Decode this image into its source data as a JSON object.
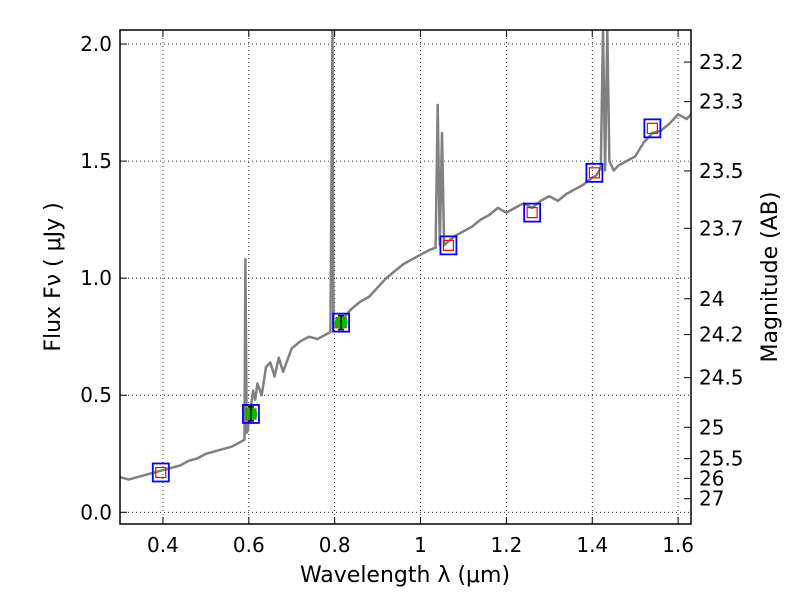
{
  "chart_data": {
    "type": "line",
    "xlabel": "Wavelength  λ (μm)",
    "ylabel": "Flux  Fν  ( μJy )",
    "y2label": "Magnitude (AB)",
    "xlim": [
      0.3,
      1.63
    ],
    "ylim": [
      -0.05,
      2.06
    ],
    "grid": true,
    "x_ticks": [
      {
        "value": 0.4,
        "label": "0.4"
      },
      {
        "value": 0.6,
        "label": "0.6"
      },
      {
        "value": 0.8,
        "label": "0.8"
      },
      {
        "value": 1.0,
        "label": "1"
      },
      {
        "value": 1.2,
        "label": "1.2"
      },
      {
        "value": 1.4,
        "label": "1.4"
      },
      {
        "value": 1.6,
        "label": "1.6"
      }
    ],
    "y_ticks": [
      {
        "value": 0.0,
        "label": "0.0"
      },
      {
        "value": 0.5,
        "label": "0.5"
      },
      {
        "value": 1.0,
        "label": "1.0"
      },
      {
        "value": 1.5,
        "label": "1.5"
      },
      {
        "value": 2.0,
        "label": "2.0"
      }
    ],
    "magnitude_ticks": [
      {
        "flux": 1.923,
        "label": "23.2"
      },
      {
        "flux": 1.754,
        "label": "23.3"
      },
      {
        "flux": 1.458,
        "label": "23.5"
      },
      {
        "flux": 1.213,
        "label": "23.7"
      },
      {
        "flux": 0.912,
        "label": "24"
      },
      {
        "flux": 0.759,
        "label": "24.2"
      },
      {
        "flux": 0.575,
        "label": "24.5"
      },
      {
        "flux": 0.363,
        "label": "25"
      },
      {
        "flux": 0.229,
        "label": "25.5"
      },
      {
        "flux": 0.145,
        "label": "26"
      },
      {
        "flux": 0.058,
        "label": "27"
      }
    ],
    "spectrum": {
      "name": "",
      "color": "#808080",
      "x": [
        0.3,
        0.32,
        0.34,
        0.36,
        0.38,
        0.4,
        0.42,
        0.44,
        0.46,
        0.48,
        0.5,
        0.52,
        0.54,
        0.56,
        0.58,
        0.59,
        0.592,
        0.595,
        0.598,
        0.6,
        0.605,
        0.61,
        0.615,
        0.62,
        0.63,
        0.64,
        0.65,
        0.66,
        0.67,
        0.68,
        0.69,
        0.7,
        0.72,
        0.74,
        0.76,
        0.78,
        0.79,
        0.795,
        0.797,
        0.8,
        0.805,
        0.81,
        0.82,
        0.84,
        0.86,
        0.88,
        0.9,
        0.92,
        0.94,
        0.96,
        0.98,
        1.0,
        1.02,
        1.035,
        1.04,
        1.045,
        1.05,
        1.055,
        1.06,
        1.08,
        1.1,
        1.12,
        1.14,
        1.16,
        1.18,
        1.2,
        1.22,
        1.24,
        1.26,
        1.28,
        1.3,
        1.32,
        1.34,
        1.36,
        1.38,
        1.4,
        1.41,
        1.42,
        1.425,
        1.43,
        1.435,
        1.44,
        1.45,
        1.46,
        1.48,
        1.5,
        1.52,
        1.54,
        1.56,
        1.58,
        1.6,
        1.62,
        1.63
      ],
      "y": [
        0.15,
        0.14,
        0.15,
        0.16,
        0.17,
        0.18,
        0.19,
        0.2,
        0.22,
        0.23,
        0.25,
        0.26,
        0.27,
        0.28,
        0.3,
        0.31,
        1.08,
        0.34,
        0.35,
        0.4,
        0.45,
        0.52,
        0.48,
        0.55,
        0.5,
        0.62,
        0.64,
        0.58,
        0.66,
        0.6,
        0.65,
        0.7,
        0.73,
        0.75,
        0.74,
        0.76,
        0.77,
        2.06,
        0.78,
        0.8,
        0.79,
        0.82,
        0.83,
        0.87,
        0.9,
        0.92,
        0.96,
        1.0,
        1.03,
        1.06,
        1.08,
        1.1,
        1.12,
        1.13,
        1.74,
        1.14,
        1.62,
        1.14,
        1.15,
        1.18,
        1.2,
        1.22,
        1.25,
        1.27,
        1.3,
        1.28,
        1.3,
        1.32,
        1.3,
        1.33,
        1.35,
        1.33,
        1.36,
        1.38,
        1.4,
        1.43,
        1.44,
        1.47,
        2.06,
        1.46,
        2.06,
        1.5,
        1.46,
        1.48,
        1.5,
        1.52,
        1.58,
        1.62,
        1.63,
        1.66,
        1.7,
        1.68,
        1.7
      ]
    },
    "photometry_boxes": [
      {
        "x": 0.395,
        "y": 0.17,
        "edge": "#0000ff",
        "model": "#ff0000"
      },
      {
        "x": 0.605,
        "y": 0.42,
        "edge": "#0000ff",
        "model": "#ff0000"
      },
      {
        "x": 0.815,
        "y": 0.81,
        "edge": "#0000ff",
        "model": "#ff0000"
      },
      {
        "x": 1.065,
        "y": 1.14,
        "edge": "#0000ff",
        "model": "#ff0000"
      },
      {
        "x": 1.26,
        "y": 1.28,
        "edge": "#0000ff",
        "model": "#ff0000"
      },
      {
        "x": 1.405,
        "y": 1.45,
        "edge": "#0000ff",
        "model": "#ff0000"
      },
      {
        "x": 1.54,
        "y": 1.64,
        "edge": "#0000ff",
        "model": "#ff0000"
      }
    ],
    "observed_points": [
      {
        "x": 0.605,
        "y": 0.42,
        "yerr": 0.03,
        "color": "#00bb00"
      },
      {
        "x": 0.815,
        "y": 0.81,
        "yerr": 0.03,
        "color": "#00bb00"
      }
    ]
  }
}
